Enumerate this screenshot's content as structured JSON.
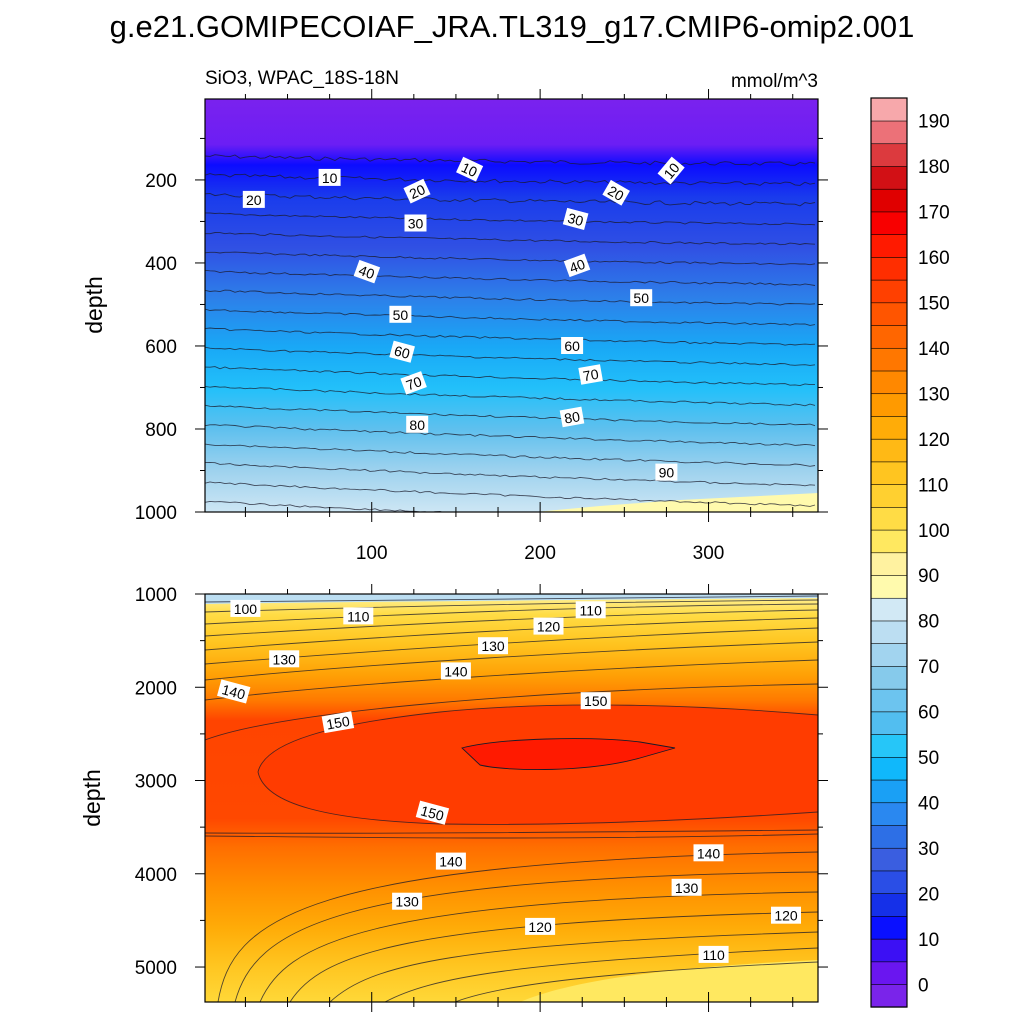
{
  "title": "g.e21.GOMIPECOIAF_JRA.TL319_g17.CMIP6-omip2.001",
  "chart_data": [
    {
      "type": "heatmap",
      "panel": "upper",
      "left_label": "SiO3, WPAC_18S-18N",
      "right_label": "mmol/m^3",
      "ylabel": "depth",
      "xlabel": "",
      "x_ticks": [
        "100",
        "200",
        "300"
      ],
      "y_ticks": [
        "200",
        "400",
        "600",
        "800",
        "1000"
      ],
      "xlim": [
        1,
        365
      ],
      "ylim": [
        1000,
        5
      ],
      "contour_labels": [
        {
          "text": "10",
          "x": 75,
          "y": 195,
          "angle": 0
        },
        {
          "text": "10",
          "x": 158,
          "y": 175,
          "angle": 25
        },
        {
          "text": "10",
          "x": 278,
          "y": 178,
          "angle": -50
        },
        {
          "text": "20",
          "x": 30,
          "y": 248,
          "angle": 0
        },
        {
          "text": "20",
          "x": 127,
          "y": 228,
          "angle": -25
        },
        {
          "text": "20",
          "x": 245,
          "y": 232,
          "angle": 30
        },
        {
          "text": "30",
          "x": 126,
          "y": 305,
          "angle": 0
        },
        {
          "text": "30",
          "x": 221,
          "y": 295,
          "angle": 15
        },
        {
          "text": "40",
          "x": 97,
          "y": 422,
          "angle": 20
        },
        {
          "text": "40",
          "x": 222,
          "y": 407,
          "angle": -20
        },
        {
          "text": "50",
          "x": 117,
          "y": 525,
          "angle": 0
        },
        {
          "text": "50",
          "x": 260,
          "y": 485,
          "angle": 0
        },
        {
          "text": "60",
          "x": 118,
          "y": 615,
          "angle": 15
        },
        {
          "text": "60",
          "x": 219,
          "y": 600,
          "angle": 0
        },
        {
          "text": "70",
          "x": 125,
          "y": 690,
          "angle": -20
        },
        {
          "text": "70",
          "x": 230,
          "y": 670,
          "angle": -10
        },
        {
          "text": "80",
          "x": 127,
          "y": 790,
          "angle": 0
        },
        {
          "text": "80",
          "x": 219,
          "y": 772,
          "angle": -10
        },
        {
          "text": "90",
          "x": 275,
          "y": 905,
          "angle": 0
        }
      ]
    },
    {
      "type": "heatmap",
      "panel": "lower",
      "ylabel": "depth",
      "x_ticks": [],
      "y_ticks": [
        "1000",
        "2000",
        "3000",
        "4000",
        "5000"
      ],
      "xlim": [
        1,
        365
      ],
      "ylim": [
        5375,
        1000
      ],
      "contour_labels": [
        {
          "text": "100",
          "x": 25,
          "y": 1160,
          "angle": 0
        },
        {
          "text": "110",
          "x": 92,
          "y": 1240,
          "angle": 0
        },
        {
          "text": "110",
          "x": 230,
          "y": 1175,
          "angle": 0
        },
        {
          "text": "120",
          "x": 205,
          "y": 1350,
          "angle": 0
        },
        {
          "text": "130",
          "x": 48,
          "y": 1700,
          "angle": 0
        },
        {
          "text": "130",
          "x": 172,
          "y": 1560,
          "angle": 0
        },
        {
          "text": "140",
          "x": 18,
          "y": 2050,
          "angle": 15
        },
        {
          "text": "140",
          "x": 150,
          "y": 1830,
          "angle": 0
        },
        {
          "text": "150",
          "x": 80,
          "y": 2380,
          "angle": -10
        },
        {
          "text": "150",
          "x": 233,
          "y": 2150,
          "angle": 0
        },
        {
          "text": "150",
          "x": 136,
          "y": 3350,
          "angle": 15
        },
        {
          "text": "140",
          "x": 147,
          "y": 3870,
          "angle": 0
        },
        {
          "text": "140",
          "x": 300,
          "y": 3780,
          "angle": 0
        },
        {
          "text": "130",
          "x": 121,
          "y": 4300,
          "angle": 0
        },
        {
          "text": "130",
          "x": 287,
          "y": 4150,
          "angle": 0
        },
        {
          "text": "120",
          "x": 200,
          "y": 4570,
          "angle": 0
        },
        {
          "text": "120",
          "x": 346,
          "y": 4450,
          "angle": 0
        },
        {
          "text": "110",
          "x": 303,
          "y": 4870,
          "angle": 0
        }
      ]
    }
  ],
  "colorbar": {
    "labels": [
      "0",
      "10",
      "20",
      "30",
      "40",
      "50",
      "60",
      "70",
      "80",
      "90",
      "100",
      "110",
      "120",
      "130",
      "140",
      "150",
      "160",
      "170",
      "180",
      "190"
    ],
    "colors": [
      "#7a24ea",
      "#6a16f0",
      "#3c10f4",
      "#0a10ff",
      "#1530e8",
      "#2a4ee6",
      "#3a5ee0",
      "#2d6fe6",
      "#2a88f0",
      "#1aa0f5",
      "#10b8fb",
      "#26c6f8",
      "#52bef0",
      "#6cc4ef",
      "#86caeb",
      "#a2d4ef",
      "#bcdef2",
      "#d2e9f5",
      "#fffaad",
      "#fff2a0",
      "#ffe860",
      "#ffdc45",
      "#ffd030",
      "#ffc520",
      "#ffb915",
      "#ffac08",
      "#ff9a00",
      "#ff8800",
      "#ff7700",
      "#ff6600",
      "#ff5500",
      "#ff4000",
      "#ff2e00",
      "#ff1a00",
      "#f80000",
      "#e00000",
      "#d21015",
      "#dc3a3e",
      "#ec7178",
      "#f7a8ab"
    ]
  }
}
